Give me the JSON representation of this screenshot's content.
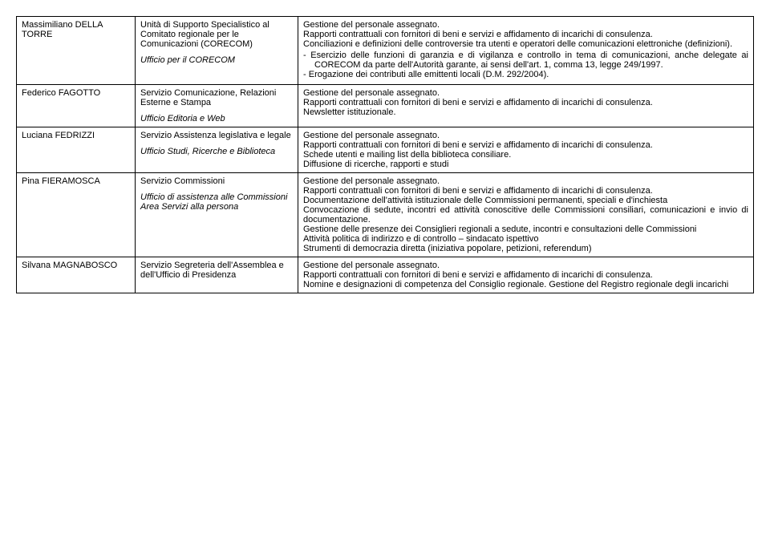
{
  "rows": [
    {
      "name": "Massimiliano DELLA TORRE",
      "unit_main": "Unità di Supporto Specialistico al Comitato regionale per le Comunicazioni (CORECOM)",
      "unit_sub": "Ufficio per il CORECOM",
      "desc_lines": [
        "Gestione del personale assegnato.",
        "Rapporti contrattuali con fornitori di beni e servizi e affidamento di incarichi di consulenza.",
        "Conciliazioni e definizioni delle controversie tra utenti e operatori delle comunicazioni elettroniche (definizioni)."
      ],
      "desc_bullets": [
        "Esercizio delle funzioni di garanzia e di vigilanza e controllo in tema di comunicazioni, anche delegate ai CORECOM da parte dell'Autorità garante, ai sensi dell'art. 1, comma 13, legge 249/1997.",
        "Erogazione dei contributi alle emittenti locali (D.M. 292/2004)."
      ]
    },
    {
      "name": "Federico FAGOTTO",
      "unit_main": "Servizio Comunicazione, Relazioni Esterne e Stampa",
      "unit_sub": "Ufficio Editoria e Web",
      "desc_lines": [
        "Gestione del personale assegnato.",
        "Rapporti contrattuali con fornitori di beni e servizi e affidamento di incarichi di consulenza.",
        "Newsletter istituzionale."
      ]
    },
    {
      "name": "Luciana FEDRIZZI",
      "unit_main": "Servizio Assistenza legislativa e legale",
      "unit_sub": "Ufficio Studi, Ricerche e Biblioteca",
      "desc_lines": [
        "Gestione del personale assegnato.",
        "Rapporti contrattuali con fornitori di beni e servizi e affidamento di incarichi di consulenza.",
        "Schede utenti e mailing list della biblioteca consiliare.",
        "Diffusione di ricerche, rapporti e studi"
      ]
    },
    {
      "name": "Pina FIERAMOSCA",
      "unit_main": "Servizio Commissioni",
      "unit_sub": "Ufficio di assistenza alle Commissioni Area Servizi alla persona",
      "desc_lines": [
        "Gestione del personale assegnato.",
        "Rapporti contrattuali con fornitori di beni e servizi e affidamento di incarichi di consulenza.",
        "Documentazione dell'attività istituzionale delle Commissioni permanenti, speciali e d'inchiesta",
        "Convocazione di sedute, incontri ed attività conoscitive delle Commissioni consiliari, comunicazioni e invio di documentazione.",
        "Gestione delle presenze dei Consiglieri regionali a sedute, incontri e consultazioni delle Commissioni",
        "Attività politica di indirizzo e di controllo – sindacato ispettivo",
        "Strumenti di democrazia diretta (iniziativa popolare, petizioni, referendum)"
      ]
    },
    {
      "name": "Silvana MAGNABOSCO",
      "unit_main": "Servizio Segreteria dell'Assemblea e dell'Ufficio di Presidenza",
      "unit_sub": "",
      "desc_lines": [
        "Gestione del personale assegnato.",
        "Rapporti contrattuali con fornitori di beni e servizi e affidamento di incarichi di consulenza.",
        "Nomine e designazioni di competenza del Consiglio regionale. Gestione del Registro regionale degli incarichi"
      ]
    }
  ]
}
